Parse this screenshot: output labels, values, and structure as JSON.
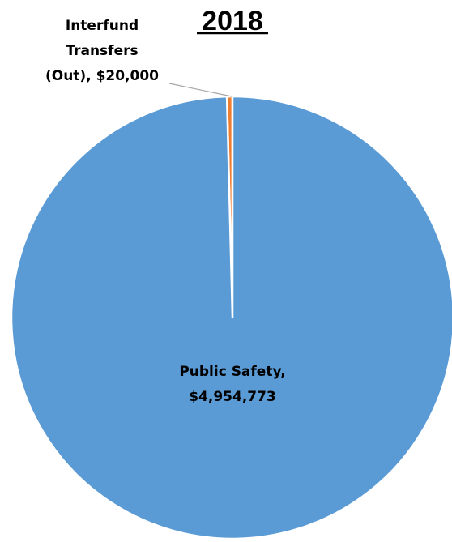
{
  "chart_data": {
    "type": "pie",
    "title": "2018",
    "slices": [
      {
        "category": "Public Safety",
        "value": 4954773,
        "value_label": "$4,954,773",
        "color": "#5B9BD5",
        "label_lines": [
          "Public Safety,",
          "$4,954,773"
        ]
      },
      {
        "category": "Interfund Transfers (Out)",
        "value": 20000,
        "value_label": "$20,000",
        "color": "#ED7D31",
        "label_lines": [
          "Interfund",
          "Transfers",
          "(Out),  $20,000"
        ]
      }
    ],
    "legend": "none"
  }
}
